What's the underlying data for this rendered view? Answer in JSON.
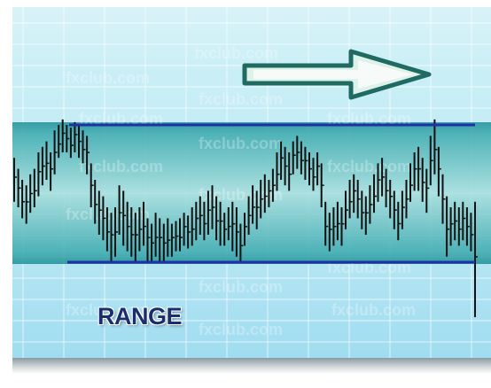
{
  "watermark_text": "fxclub.com",
  "colors": {
    "band": "#2f9ea2",
    "band_center": "#8fd4d4",
    "range_line": "#1e2fa8",
    "bar": "#111111",
    "arrow_fill": "#dff2ea",
    "arrow_stroke": "#1f6b62",
    "label": "#1a2e6e"
  },
  "icons": {
    "arrow": "right-arrow-icon"
  },
  "chart_data": {
    "type": "ohlc",
    "title": "",
    "annotation": "RANGE",
    "grid": true,
    "ylim": [
      0,
      100
    ],
    "range": {
      "upper": 80,
      "lower": 30
    },
    "bars": [
      {
        "high": 68,
        "low": 52
      },
      {
        "high": 64,
        "low": 50
      },
      {
        "high": 60,
        "low": 46
      },
      {
        "high": 58,
        "low": 44
      },
      {
        "high": 62,
        "low": 48
      },
      {
        "high": 64,
        "low": 50
      },
      {
        "high": 70,
        "low": 54
      },
      {
        "high": 72,
        "low": 58
      },
      {
        "high": 74,
        "low": 60
      },
      {
        "high": 70,
        "low": 56
      },
      {
        "high": 78,
        "low": 62
      },
      {
        "high": 80,
        "low": 68
      },
      {
        "high": 82,
        "low": 70
      },
      {
        "high": 80,
        "low": 70
      },
      {
        "high": 79,
        "low": 68
      },
      {
        "high": 81,
        "low": 70
      },
      {
        "high": 80,
        "low": 68
      },
      {
        "high": 78,
        "low": 66
      },
      {
        "high": 76,
        "low": 62
      },
      {
        "high": 66,
        "low": 50
      },
      {
        "high": 60,
        "low": 44
      },
      {
        "high": 56,
        "low": 40
      },
      {
        "high": 54,
        "low": 38
      },
      {
        "high": 50,
        "low": 34
      },
      {
        "high": 48,
        "low": 30
      },
      {
        "high": 50,
        "low": 32
      },
      {
        "high": 58,
        "low": 40
      },
      {
        "high": 56,
        "low": 36
      },
      {
        "high": 52,
        "low": 34
      },
      {
        "high": 50,
        "low": 32
      },
      {
        "high": 48,
        "low": 30
      },
      {
        "high": 50,
        "low": 34
      },
      {
        "high": 52,
        "low": 36
      },
      {
        "high": 46,
        "low": 30
      },
      {
        "high": 44,
        "low": 30
      },
      {
        "high": 48,
        "low": 32
      },
      {
        "high": 46,
        "low": 30
      },
      {
        "high": 44,
        "low": 30
      },
      {
        "high": 46,
        "low": 32
      },
      {
        "high": 44,
        "low": 32
      },
      {
        "high": 45,
        "low": 34
      },
      {
        "high": 46,
        "low": 34
      },
      {
        "high": 48,
        "low": 36
      },
      {
        "high": 47,
        "low": 35
      },
      {
        "high": 50,
        "low": 36
      },
      {
        "high": 52,
        "low": 38
      },
      {
        "high": 54,
        "low": 40
      },
      {
        "high": 52,
        "low": 38
      },
      {
        "high": 56,
        "low": 40
      },
      {
        "high": 58,
        "low": 42
      },
      {
        "high": 54,
        "low": 38
      },
      {
        "high": 52,
        "low": 36
      },
      {
        "high": 48,
        "low": 36
      },
      {
        "high": 50,
        "low": 38
      },
      {
        "high": 52,
        "low": 34
      },
      {
        "high": 50,
        "low": 32
      },
      {
        "high": 44,
        "low": 30
      },
      {
        "high": 48,
        "low": 36
      },
      {
        "high": 54,
        "low": 40
      },
      {
        "high": 58,
        "low": 44
      },
      {
        "high": 56,
        "low": 42
      },
      {
        "high": 60,
        "low": 46
      },
      {
        "high": 62,
        "low": 48
      },
      {
        "high": 60,
        "low": 50
      },
      {
        "high": 64,
        "low": 52
      },
      {
        "high": 70,
        "low": 56
      },
      {
        "high": 74,
        "low": 60
      },
      {
        "high": 72,
        "low": 58
      },
      {
        "high": 70,
        "low": 56
      },
      {
        "high": 74,
        "low": 62
      },
      {
        "high": 76,
        "low": 64
      },
      {
        "high": 74,
        "low": 62
      },
      {
        "high": 72,
        "low": 60
      },
      {
        "high": 70,
        "low": 58
      },
      {
        "high": 68,
        "low": 56
      },
      {
        "high": 70,
        "low": 58
      },
      {
        "high": 66,
        "low": 50
      },
      {
        "high": 52,
        "low": 36
      },
      {
        "high": 48,
        "low": 34
      },
      {
        "high": 50,
        "low": 36
      },
      {
        "high": 52,
        "low": 38
      },
      {
        "high": 50,
        "low": 36
      },
      {
        "high": 56,
        "low": 42
      },
      {
        "high": 60,
        "low": 46
      },
      {
        "high": 62,
        "low": 48
      },
      {
        "high": 60,
        "low": 46
      },
      {
        "high": 56,
        "low": 42
      },
      {
        "high": 54,
        "low": 40
      },
      {
        "high": 58,
        "low": 44
      },
      {
        "high": 62,
        "low": 48
      },
      {
        "high": 66,
        "low": 52
      },
      {
        "high": 68,
        "low": 54
      },
      {
        "high": 64,
        "low": 50
      },
      {
        "high": 60,
        "low": 46
      },
      {
        "high": 56,
        "low": 42
      },
      {
        "high": 52,
        "low": 38
      },
      {
        "high": 56,
        "low": 42
      },
      {
        "high": 60,
        "low": 46
      },
      {
        "high": 66,
        "low": 52
      },
      {
        "high": 70,
        "low": 56
      },
      {
        "high": 72,
        "low": 56
      },
      {
        "high": 68,
        "low": 52
      },
      {
        "high": 64,
        "low": 48
      },
      {
        "high": 76,
        "low": 58
      },
      {
        "high": 82,
        "low": 62
      },
      {
        "high": 72,
        "low": 54
      },
      {
        "high": 62,
        "low": 44
      },
      {
        "high": 54,
        "low": 32
      },
      {
        "high": 50,
        "low": 36
      },
      {
        "high": 52,
        "low": 38
      },
      {
        "high": 50,
        "low": 36
      },
      {
        "high": 52,
        "low": 38
      },
      {
        "high": 50,
        "low": 36
      },
      {
        "high": 48,
        "low": 34
      },
      {
        "high": 52,
        "low": 10
      }
    ]
  }
}
